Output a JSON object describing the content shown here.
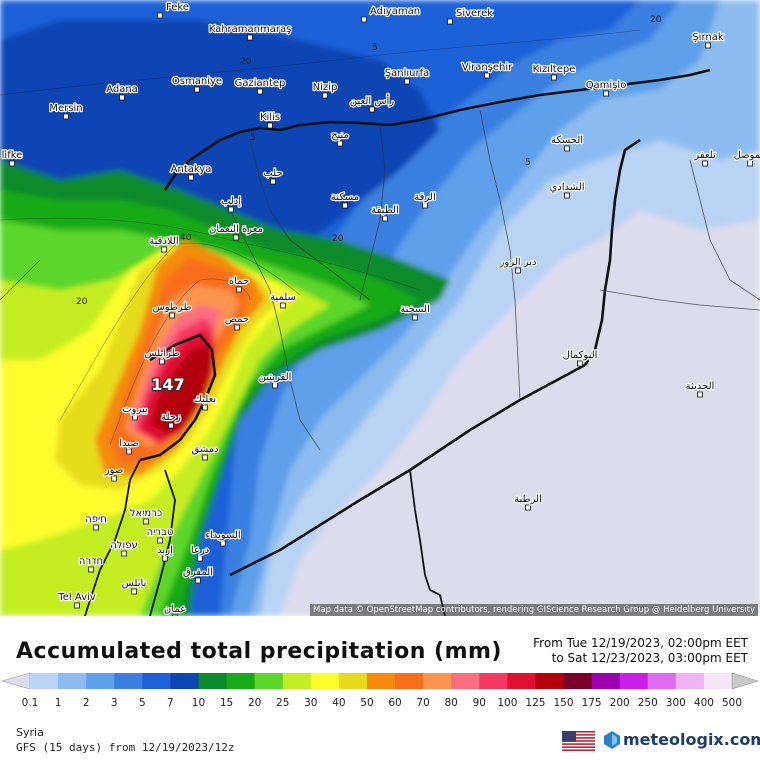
{
  "map": {
    "attribution": "Map data © OpenStreetMap contributors, rendering GIScience Research Group @ Heidelberg University",
    "max_value_label": "147",
    "isoline_labels": [
      {
        "text": "5",
        "id": "iso-5-north"
      },
      {
        "text": "5",
        "id": "iso-5-kilis"
      },
      {
        "text": "5",
        "id": "iso-5-hasakah"
      },
      {
        "text": "20",
        "id": "iso-20-kahraman"
      },
      {
        "text": "20",
        "id": "iso-20-sirnak"
      },
      {
        "text": "20",
        "id": "iso-20-coast"
      },
      {
        "text": "20",
        "id": "iso-20-inland"
      },
      {
        "text": "40",
        "id": "iso-40-latakia"
      }
    ],
    "cities": [
      {
        "id": "feke",
        "name": "Feke"
      },
      {
        "id": "adiyaman",
        "name": "Adıyaman"
      },
      {
        "id": "siverek",
        "name": "Siverek"
      },
      {
        "id": "kahramanmaras",
        "name": "Kahramanmaraş"
      },
      {
        "id": "sirnak",
        "name": "Şırnak"
      },
      {
        "id": "adana",
        "name": "Adana"
      },
      {
        "id": "osmaniye",
        "name": "Osmaniye"
      },
      {
        "id": "gaziantep",
        "name": "Gaziantep"
      },
      {
        "id": "nizip",
        "name": "Nizip"
      },
      {
        "id": "sanliurfa",
        "name": "Şanlıurfa"
      },
      {
        "id": "viransehir",
        "name": "Viranşehir"
      },
      {
        "id": "kiziltepe",
        "name": "Kızıltepe"
      },
      {
        "id": "qamishlo",
        "name": "Qamişlo"
      },
      {
        "id": "mersin",
        "name": "Mersin"
      },
      {
        "id": "ras-al-ain",
        "name": "رأس العين"
      },
      {
        "id": "kilis",
        "name": "Kilis"
      },
      {
        "id": "manbij",
        "name": "منبج"
      },
      {
        "id": "hasakah",
        "name": "الحسكة"
      },
      {
        "id": "silifke",
        "name": "lifke"
      },
      {
        "id": "antakya",
        "name": "Antakya"
      },
      {
        "id": "aleppo",
        "name": "حلب"
      },
      {
        "id": "talafar",
        "name": "تلعفر"
      },
      {
        "id": "mosul",
        "name": "الموصل"
      },
      {
        "id": "maskanah",
        "name": "مسكنة"
      },
      {
        "id": "shaddadi",
        "name": "الشدادي"
      },
      {
        "id": "idlib",
        "name": "إدلب"
      },
      {
        "id": "tabqa",
        "name": "الطبقة"
      },
      {
        "id": "raqqa",
        "name": "الرقة"
      },
      {
        "id": "latakia",
        "name": "اللاذقية"
      },
      {
        "id": "maarat",
        "name": "معرة النعمان"
      },
      {
        "id": "deir-ez-zor",
        "name": "دير الزور"
      },
      {
        "id": "hama",
        "name": "حماة"
      },
      {
        "id": "salamiyah",
        "name": "سلمية"
      },
      {
        "id": "tartus",
        "name": "طرطوس"
      },
      {
        "id": "sukhnah",
        "name": "السخنة"
      },
      {
        "id": "homs",
        "name": "حمص"
      },
      {
        "id": "abu-kamal",
        "name": "البوكمال"
      },
      {
        "id": "tripoli",
        "name": "طرابلس"
      },
      {
        "id": "qaryatayn",
        "name": "القريتين"
      },
      {
        "id": "haditha",
        "name": "الحديثة"
      },
      {
        "id": "baalbek",
        "name": "بعلبك"
      },
      {
        "id": "beirut",
        "name": "بيروت"
      },
      {
        "id": "zahle",
        "name": "زحلة"
      },
      {
        "id": "sidon",
        "name": "صيدا"
      },
      {
        "id": "damascus",
        "name": "دمشق"
      },
      {
        "id": "tyre",
        "name": "صور"
      },
      {
        "id": "rutba",
        "name": "الرطبة"
      },
      {
        "id": "haifa",
        "name": "חיפה"
      },
      {
        "id": "karmiel",
        "name": "כרמיאל"
      },
      {
        "id": "tiberias",
        "name": "טבריה"
      },
      {
        "id": "afula",
        "name": "עפולה"
      },
      {
        "id": "suwayda",
        "name": "السويداء"
      },
      {
        "id": "irbid",
        "name": "إربد"
      },
      {
        "id": "daraa",
        "name": "درعا"
      },
      {
        "id": "hadera",
        "name": "חדרה"
      },
      {
        "id": "mafraq",
        "name": "المفرق"
      },
      {
        "id": "nablus",
        "name": "نابلس"
      },
      {
        "id": "tel-aviv",
        "name": "Tel Aviv"
      },
      {
        "id": "amman",
        "name": "عمان"
      }
    ]
  },
  "title": "Accumulated total precipitation (mm)",
  "date_range": {
    "from": "From Tue 12/19/2023, 02:00pm EET",
    "to": "to Sat 12/23/2023, 03:00pm EET"
  },
  "legend": {
    "labels": [
      "0.1",
      "1",
      "2",
      "3",
      "5",
      "7",
      "10",
      "15",
      "20",
      "25",
      "30",
      "40",
      "50",
      "60",
      "70",
      "80",
      "90",
      "100",
      "125",
      "150",
      "175",
      "200",
      "250",
      "300",
      "400",
      "500"
    ],
    "colors": [
      "#dcdcec",
      "#b9d3f4",
      "#8dbdf0",
      "#5ea0ea",
      "#3b7fe0",
      "#1d60d8",
      "#0f45b4",
      "#0a8a2c",
      "#19aa19",
      "#5cd62a",
      "#c4ee22",
      "#fdfd2e",
      "#e6dc1c",
      "#f58a0e",
      "#f86e1a",
      "#fa9450",
      "#fb6e82",
      "#f5385e",
      "#e01030",
      "#b4000a",
      "#7a0028",
      "#9c00b0",
      "#c820e8",
      "#e06af0",
      "#f0b4f4",
      "#f6e6f8",
      "#c8c8c8"
    ]
  },
  "region_name": "Syria",
  "model_run": "GFS (15 days) from 12/19/2023/12z",
  "brand": "meteologix.com"
}
